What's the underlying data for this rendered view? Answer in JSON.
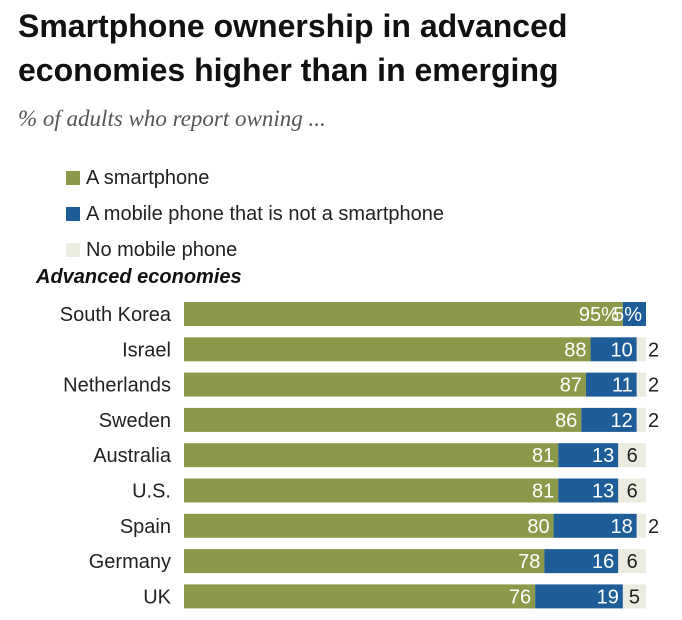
{
  "title": "Smartphone ownership in advanced economies higher than in emerging",
  "subtitle": "% of adults who report owning ...",
  "colors": {
    "smartphone": "#8b9a4a",
    "non_smartphone": "#1f5d98",
    "no_phone": "#ecebdf"
  },
  "legend": [
    {
      "label": "A smartphone",
      "color": "#8b9a4a"
    },
    {
      "label": "A mobile phone that is not a smartphone",
      "color": "#1f5d98"
    },
    {
      "label": "No mobile phone",
      "color": "#ecebdf"
    }
  ],
  "section_label": "Advanced economies",
  "chart_data": {
    "type": "bar",
    "orientation": "horizontal",
    "stacked": true,
    "xlim": [
      0,
      100
    ],
    "categories": [
      "South Korea",
      "Israel",
      "Netherlands",
      "Sweden",
      "Australia",
      "U.S.",
      "Spain",
      "Germany",
      "UK"
    ],
    "series": [
      {
        "name": "A smartphone",
        "values": [
          95,
          88,
          87,
          86,
          81,
          81,
          80,
          78,
          76
        ],
        "labels": [
          "95%",
          "88",
          "87",
          "86",
          "81",
          "81",
          "80",
          "78",
          "76"
        ]
      },
      {
        "name": "A mobile phone that is not a smartphone",
        "values": [
          5,
          10,
          11,
          12,
          13,
          13,
          18,
          16,
          19
        ],
        "labels": [
          "5%",
          "10",
          "11",
          "12",
          "13",
          "13",
          "18",
          "16",
          "19"
        ]
      },
      {
        "name": "No mobile phone",
        "values": [
          0,
          2,
          2,
          2,
          6,
          6,
          2,
          6,
          5
        ],
        "labels": [
          "",
          "2",
          "2",
          "2",
          "6",
          "6",
          "2",
          "6",
          "5"
        ]
      }
    ]
  }
}
